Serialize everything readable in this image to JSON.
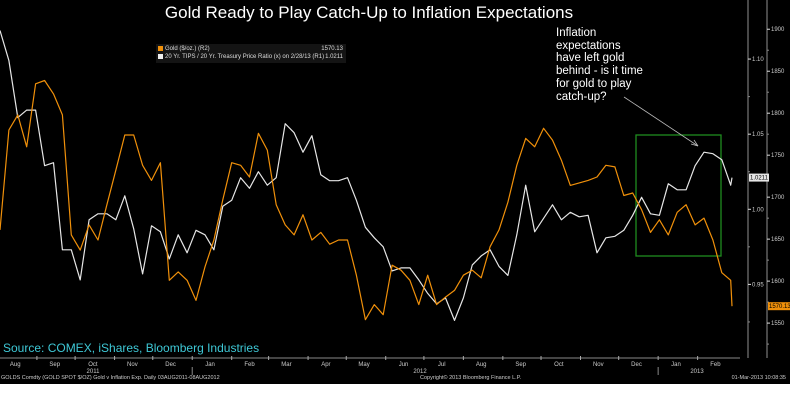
{
  "chart_data": {
    "type": "line",
    "title": "Gold Ready to Play Catch-Up to Inflation Expectations",
    "xlim": [
      "2011-08-03",
      "2013-03-01"
    ],
    "x_tick_labels": [
      "Aug",
      "Sep",
      "Oct",
      "Nov",
      "Dec",
      "Jan",
      "Feb",
      "Mar",
      "Apr",
      "May",
      "Jun",
      "Jul",
      "Aug",
      "Sep",
      "Oct",
      "Nov",
      "Dec",
      "Jan",
      "Feb"
    ],
    "x_year_labels": [
      "2011",
      "2012",
      "2013"
    ],
    "y_axes": {
      "R1": {
        "ticks": [
          "0.95",
          "1.00",
          "1.05",
          "1.10"
        ],
        "range": [
          0.903,
          1.126
        ]
      },
      "R2": {
        "ticks": [
          "1550",
          "1600",
          "1650",
          "1700",
          "1750",
          "1800",
          "1850",
          "1900"
        ],
        "range": [
          1512,
          1911
        ]
      }
    },
    "grid": false,
    "legend_position": "top-left",
    "x": [
      "2011-08-03",
      "2011-08-10",
      "2011-08-17",
      "2011-08-24",
      "2011-08-31",
      "2011-09-07",
      "2011-09-14",
      "2011-09-21",
      "2011-09-28",
      "2011-10-05",
      "2011-10-12",
      "2011-10-19",
      "2011-10-26",
      "2011-11-02",
      "2011-11-09",
      "2011-11-16",
      "2011-11-23",
      "2011-11-30",
      "2011-12-07",
      "2011-12-14",
      "2011-12-21",
      "2011-12-28",
      "2012-01-04",
      "2012-01-11",
      "2012-01-18",
      "2012-01-25",
      "2012-02-01",
      "2012-02-08",
      "2012-02-15",
      "2012-02-22",
      "2012-02-29",
      "2012-03-07",
      "2012-03-14",
      "2012-03-21",
      "2012-03-28",
      "2012-04-04",
      "2012-04-11",
      "2012-04-18",
      "2012-04-25",
      "2012-05-02",
      "2012-05-09",
      "2012-05-16",
      "2012-05-23",
      "2012-05-30",
      "2012-06-06",
      "2012-06-13",
      "2012-06-20",
      "2012-06-27",
      "2012-07-04",
      "2012-07-11",
      "2012-07-18",
      "2012-07-25",
      "2012-08-01",
      "2012-08-08",
      "2012-08-15",
      "2012-08-22",
      "2012-08-29",
      "2012-09-05",
      "2012-09-12",
      "2012-09-19",
      "2012-09-26",
      "2012-10-03",
      "2012-10-10",
      "2012-10-17",
      "2012-10-24",
      "2012-10-31",
      "2012-11-07",
      "2012-11-14",
      "2012-11-21",
      "2012-11-28",
      "2012-12-05",
      "2012-12-12",
      "2012-12-19",
      "2012-12-26",
      "2013-01-02",
      "2013-01-09",
      "2013-01-16",
      "2013-01-23",
      "2013-01-30",
      "2013-02-06",
      "2013-02-13",
      "2013-02-20",
      "2013-02-27",
      "2013-02-28"
    ],
    "series": [
      {
        "name": "Gold ($/oz.) (R2)",
        "axis": "R2",
        "color": "#f0900a",
        "last": "1570.13",
        "values": [
          1661,
          1780,
          1798,
          1760,
          1835,
          1839,
          1823,
          1798,
          1655,
          1637,
          1667,
          1649,
          1691,
          1732,
          1774,
          1774,
          1738,
          1720,
          1741,
          1601,
          1611,
          1601,
          1577,
          1617,
          1649,
          1697,
          1741,
          1738,
          1724,
          1776,
          1756,
          1691,
          1667,
          1655,
          1679,
          1649,
          1658,
          1644,
          1649,
          1649,
          1607,
          1554,
          1572,
          1560,
          1619,
          1613,
          1601,
          1572,
          1607,
          1572,
          1581,
          1589,
          1607,
          1613,
          1604,
          1641,
          1661,
          1694,
          1738,
          1770,
          1760,
          1782,
          1768,
          1744,
          1714,
          1717,
          1720,
          1724,
          1738,
          1736,
          1702,
          1705,
          1685,
          1658,
          1673,
          1655,
          1682,
          1691,
          1667,
          1675,
          1649,
          1610,
          1601,
          1570.13
        ]
      },
      {
        "name": "20 Yr. TIPS / 20 Yr. Treasury Price Ratio (x) on 2/28/13 (R1)",
        "axis": "R1",
        "color": "#e6e6e6",
        "last": "1.0211",
        "values": [
          1.119,
          1.099,
          1.061,
          1.066,
          1.066,
          1.029,
          1.031,
          0.973,
          0.973,
          0.953,
          0.993,
          0.997,
          0.997,
          0.993,
          1.009,
          0.987,
          0.957,
          0.989,
          0.985,
          0.967,
          0.983,
          0.971,
          0.986,
          0.983,
          0.973,
          1.002,
          1.006,
          1.021,
          1.014,
          1.025,
          1.016,
          1.021,
          1.057,
          1.051,
          1.038,
          1.049,
          1.023,
          1.019,
          1.019,
          1.021,
          1.006,
          0.988,
          0.981,
          0.975,
          0.959,
          0.961,
          0.961,
          0.953,
          0.944,
          0.937,
          0.941,
          0.926,
          0.941,
          0.963,
          0.969,
          0.973,
          0.962,
          0.956,
          0.983,
          1.016,
          0.985,
          0.994,
          1.003,
          0.993,
          0.998,
          0.995,
          0.996,
          0.971,
          0.981,
          0.982,
          0.986,
          0.996,
          1.008,
          0.997,
          0.996,
          1.017,
          1.013,
          1.013,
          1.029,
          1.038,
          1.037,
          1.033,
          1.016,
          1.0211
        ]
      }
    ],
    "annotation": "Inflation expectations have left gold behind - is it time for gold to play catch-up?",
    "highlight_box": {
      "from": "2012-12-01",
      "to": "2013-02-25",
      "color": "#1e8c1e"
    }
  },
  "legend": {
    "gold_label": "Gold ($/oz.) (R2)",
    "gold_value": "1570.13",
    "tips_label": "20 Yr. TIPS / 20 Yr. Treasury Price Ratio (x) on 2/28/13 (R1)",
    "tips_value": "1.0211"
  },
  "source": "Source: COMEX, iShares, Bloomberg Industries",
  "footer": {
    "left": "GOLDS Comdty (GOLD SPOT $/OZ) Gold v Inflation Exp.  Daily 03AUG2011-08AUG2012",
    "center": "Copyright© 2013 Bloomberg Finance L.P.",
    "right": "01-Mar-2013 10:08:35"
  }
}
